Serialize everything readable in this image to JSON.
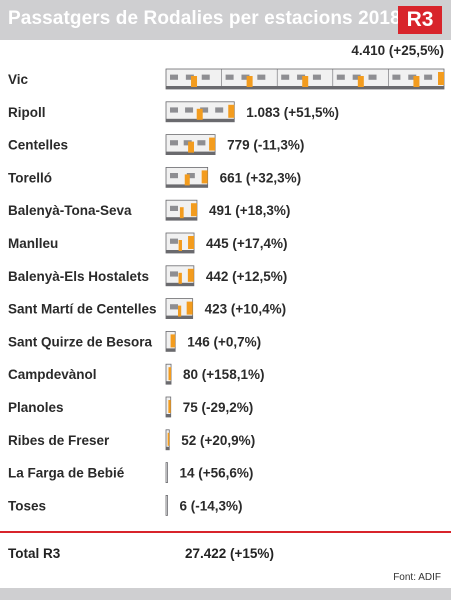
{
  "header": {
    "title": "Passatgers de Rodalies per estacions 2018",
    "badge": "R3",
    "badge_color": "#d8242b",
    "band_color": "#cfcfd1"
  },
  "chart_data": {
    "type": "bar",
    "title": "Passatgers de Rodalies per estacions 2018",
    "categories": [
      "Vic",
      "Ripoll",
      "Centelles",
      "Torelló",
      "Balenyà-Tona-Seva",
      "Manlleu",
      "Balenyà-Els Hostalets",
      "Sant Martí de Centelles",
      "Sant Quirze de Besora",
      "Campdevànol",
      "Planoles",
      "Ribes de Freser",
      "La Farga de Bebié",
      "Toses"
    ],
    "values": [
      4410,
      1083,
      779,
      661,
      491,
      445,
      442,
      423,
      146,
      80,
      75,
      52,
      14,
      6
    ],
    "value_labels": [
      "4.410 (+25,5%)",
      "1.083 (+51,5%)",
      "779 (-11,3%)",
      "661 (+32,3%)",
      "491 (+18,3%)",
      "445 (+17,4%)",
      "442 (+12,5%)",
      "423 (+10,4%)",
      "146 (+0,7%)",
      "80 (+158,1%)",
      "75 (-29,2%)",
      "52 (+20,9%)",
      "14 (+56,6%)",
      "6 (-14,3%)"
    ],
    "change_pct": [
      25.5,
      51.5,
      -11.3,
      32.3,
      18.3,
      17.4,
      12.5,
      10.4,
      0.7,
      158.1,
      -29.2,
      20.9,
      56.6,
      -14.3
    ],
    "bar_style": "train-pictogram",
    "colors": {
      "train_body": "#f1f1f1",
      "train_orange": "#f39c1e",
      "window": "#8e8e92",
      "outline": "#6a6a6e"
    }
  },
  "total": {
    "label": "Total R3",
    "value": "27.422 (+15%)"
  },
  "source": "Font: ADIF"
}
